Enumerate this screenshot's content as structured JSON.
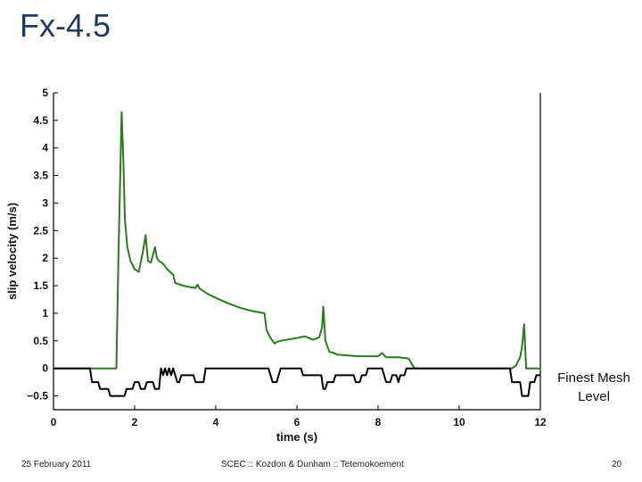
{
  "slide": {
    "title": "Fx-4.5",
    "side_label_line1": "Finest Mesh",
    "side_label_line2": "Level",
    "footer_date": "25 February 2011",
    "footer_center": "SCEC :: Kozdon & Dunham :: Tetemokoement",
    "footer_page": "20"
  },
  "chart_data": {
    "type": "line",
    "xlabel": "time (s)",
    "ylabel": "slip velocity (m/s)",
    "xlim": [
      0,
      12
    ],
    "ylim": [
      -0.75,
      5
    ],
    "x_ticks": [
      "0",
      "2",
      "4",
      "6",
      "8",
      "10",
      "12"
    ],
    "y_ticks": [
      "−0.5",
      "0",
      "0.5",
      "1",
      "1.5",
      "2",
      "2.5",
      "3",
      "3.5",
      "4",
      "4.5",
      "5"
    ],
    "grid": false,
    "series": [
      {
        "name": "",
        "color": "#2a7a1e",
        "x": [
          0,
          1.55,
          1.6,
          1.68,
          1.72,
          1.76,
          1.82,
          1.9,
          2.0,
          2.1,
          2.2,
          2.27,
          2.33,
          2.4,
          2.5,
          2.55,
          2.6,
          2.7,
          2.8,
          2.95,
          3.0,
          3.2,
          3.4,
          3.5,
          3.55,
          3.6,
          3.8,
          4.0,
          4.3,
          4.6,
          4.9,
          5.2,
          5.25,
          5.35,
          5.45,
          5.5,
          5.6,
          6.0,
          6.2,
          6.4,
          6.55,
          6.62,
          6.65,
          6.7,
          6.8,
          6.9,
          7.0,
          7.5,
          8.0,
          8.1,
          8.2,
          8.5,
          8.75,
          8.9,
          9.0,
          11.3,
          11.4,
          11.5,
          11.55,
          11.6,
          11.65,
          12
        ],
        "y": [
          0,
          0,
          2.0,
          4.65,
          3.8,
          2.7,
          2.2,
          1.95,
          1.8,
          1.75,
          2.1,
          2.42,
          1.95,
          1.92,
          2.2,
          2.0,
          1.95,
          1.9,
          1.8,
          1.7,
          1.55,
          1.5,
          1.47,
          1.46,
          1.52,
          1.45,
          1.35,
          1.28,
          1.18,
          1.1,
          1.04,
          1.0,
          0.7,
          0.55,
          0.45,
          0.48,
          0.5,
          0.55,
          0.58,
          0.52,
          0.56,
          0.75,
          1.12,
          0.5,
          0.3,
          0.28,
          0.25,
          0.22,
          0.22,
          0.28,
          0.2,
          0.2,
          0.18,
          0.0,
          0,
          0,
          0.05,
          0.2,
          0.4,
          0.8,
          0.0,
          0
        ]
      },
      {
        "name": "",
        "color": "#000000",
        "x": [
          0,
          0.9,
          0.95,
          1.1,
          1.15,
          1.35,
          1.4,
          1.75,
          1.8,
          1.95,
          2.0,
          2.1,
          2.15,
          2.25,
          2.3,
          2.45,
          2.5,
          2.6,
          2.65,
          2.7,
          2.75,
          2.8,
          2.85,
          2.9,
          2.95,
          3.0,
          3.05,
          3.1,
          3.15,
          3.45,
          3.5,
          3.7,
          3.75,
          5.3,
          5.35,
          5.4,
          5.5,
          5.55,
          5.6,
          6.1,
          6.15,
          6.6,
          6.65,
          6.7,
          6.75,
          6.9,
          6.95,
          7.4,
          7.45,
          7.55,
          7.6,
          7.7,
          7.75,
          8.1,
          8.15,
          8.2,
          8.3,
          8.35,
          8.45,
          8.5,
          8.55,
          8.65,
          8.7,
          11.25,
          11.3,
          11.5,
          11.55,
          11.7,
          11.75,
          11.85,
          11.9,
          12
        ],
        "y": [
          0,
          0,
          -0.25,
          -0.25,
          -0.375,
          -0.375,
          -0.5,
          -0.5,
          -0.375,
          -0.375,
          -0.25,
          -0.25,
          -0.375,
          -0.375,
          -0.25,
          -0.25,
          -0.375,
          -0.375,
          0,
          -0.125,
          0,
          -0.125,
          0,
          -0.125,
          0,
          -0.125,
          -0.25,
          -0.25,
          -0.125,
          -0.125,
          -0.25,
          -0.25,
          0,
          0,
          -0.125,
          -0.25,
          -0.25,
          -0.125,
          0,
          0,
          -0.125,
          -0.125,
          -0.375,
          -0.375,
          -0.25,
          -0.25,
          -0.125,
          -0.125,
          -0.25,
          -0.25,
          -0.125,
          -0.125,
          0,
          0,
          -0.125,
          -0.25,
          -0.25,
          -0.125,
          -0.125,
          -0.25,
          -0.125,
          -0.125,
          0,
          0,
          -0.25,
          -0.25,
          -0.5,
          -0.5,
          -0.25,
          -0.25,
          -0.125,
          -0.125
        ]
      }
    ]
  }
}
